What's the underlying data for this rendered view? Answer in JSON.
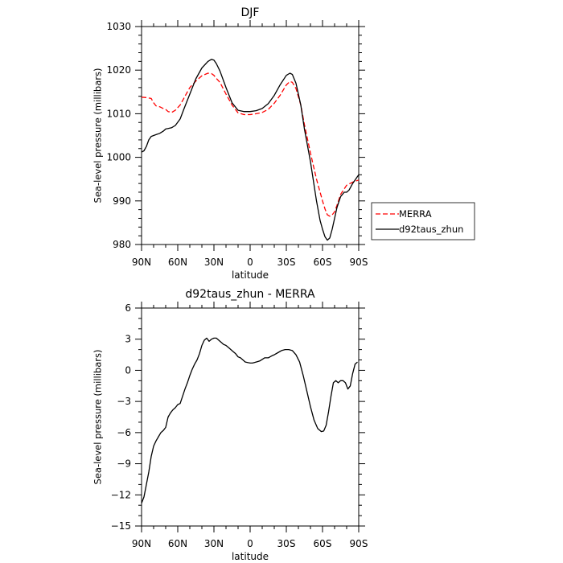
{
  "chart_data": [
    {
      "type": "line",
      "title": "DJF",
      "xlabel": "latitude",
      "ylabel": "Sea-level pressure (millibars)",
      "xlim": [
        90,
        -90
      ],
      "ylim": [
        980,
        1030
      ],
      "xticks": [
        90,
        60,
        30,
        0,
        -30,
        -60,
        -90
      ],
      "xtick_labels": [
        "90N",
        "60N",
        "30N",
        "0",
        "30S",
        "60S",
        "90S"
      ],
      "yticks": [
        980,
        990,
        1000,
        1010,
        1020,
        1030
      ],
      "ytick_labels": [
        "980",
        "990",
        "1000",
        "1010",
        "1020",
        "1030"
      ],
      "legend_placement": "outside-right-bottom",
      "series": [
        {
          "name": "MERRA",
          "color": "#ff0000",
          "dash": "dashed",
          "x": [
            90,
            86,
            82,
            80,
            78,
            75,
            72,
            70,
            68,
            65,
            62,
            58,
            55,
            50,
            45,
            40,
            35,
            32,
            30,
            28,
            25,
            20,
            15,
            10,
            5,
            0,
            -5,
            -10,
            -15,
            -20,
            -25,
            -30,
            -33,
            -35,
            -38,
            -42,
            -45,
            -50,
            -55,
            -60,
            -62,
            -64,
            -66,
            -68,
            -70,
            -72,
            -75,
            -80,
            -85,
            -90
          ],
          "y": [
            1013.8,
            1013.7,
            1013.5,
            1012.5,
            1011.8,
            1011.6,
            1011.2,
            1011.0,
            1010.5,
            1010.3,
            1010.8,
            1012.0,
            1013.5,
            1016.0,
            1017.5,
            1018.7,
            1019.3,
            1019.2,
            1018.8,
            1018.1,
            1017.2,
            1014.5,
            1012.0,
            1010.2,
            1009.8,
            1009.8,
            1010.0,
            1010.3,
            1011.0,
            1012.4,
            1014.3,
            1016.6,
            1017.4,
            1017.2,
            1015.8,
            1012.0,
            1007.5,
            1001.0,
            995.0,
            990.0,
            988.2,
            986.8,
            986.5,
            986.8,
            987.5,
            989.0,
            991.5,
            993.6,
            994.3,
            994.8
          ]
        },
        {
          "name": "d92taus_zhun",
          "color": "#000000",
          "dash": "solid",
          "x": [
            90,
            88,
            86,
            84,
            82,
            80,
            78,
            75,
            72,
            70,
            68,
            65,
            62,
            58,
            55,
            50,
            45,
            40,
            35,
            32,
            30,
            28,
            25,
            20,
            15,
            10,
            5,
            0,
            -5,
            -10,
            -15,
            -20,
            -25,
            -30,
            -33,
            -35,
            -38,
            -42,
            -45,
            -50,
            -55,
            -58,
            -60,
            -62,
            -64,
            -66,
            -68,
            -70,
            -72,
            -75,
            -78,
            -80,
            -82,
            -85,
            -90
          ],
          "y": [
            1001.2,
            1001.5,
            1002.5,
            1004.0,
            1004.8,
            1005.0,
            1005.2,
            1005.5,
            1006.0,
            1006.5,
            1006.6,
            1006.8,
            1007.3,
            1008.8,
            1011.0,
            1014.5,
            1018.0,
            1020.5,
            1022.0,
            1022.5,
            1022.3,
            1021.5,
            1019.8,
            1016.0,
            1012.5,
            1010.8,
            1010.5,
            1010.5,
            1010.7,
            1011.2,
            1012.3,
            1014.2,
            1016.7,
            1018.8,
            1019.3,
            1019.0,
            1017.0,
            1012.0,
            1006.5,
            999.0,
            990.0,
            985.5,
            983.5,
            981.8,
            981.0,
            981.5,
            983.5,
            986.0,
            988.5,
            991.0,
            992.0,
            992.0,
            992.5,
            994.0,
            996.0
          ]
        }
      ]
    },
    {
      "type": "line",
      "title": "d92taus_zhun - MERRA",
      "xlabel": "latitude",
      "ylabel": "Sea-level pressure (millibars)",
      "xlim": [
        90,
        -90
      ],
      "ylim": [
        -15,
        6
      ],
      "xticks": [
        90,
        60,
        30,
        0,
        -30,
        -60,
        -90
      ],
      "xtick_labels": [
        "90N",
        "60N",
        "30N",
        "0",
        "30S",
        "60S",
        "90S"
      ],
      "yticks": [
        -15,
        -12,
        -9,
        -6,
        -3,
        0,
        3,
        6
      ],
      "ytick_labels": [
        "−15",
        "−12",
        "−9",
        "−6",
        "−3",
        "0",
        "3",
        "6"
      ],
      "series": [
        {
          "color": "#000000",
          "dash": "solid",
          "x": [
            90,
            88,
            86,
            84,
            82,
            80,
            78,
            76,
            74,
            72,
            70,
            68,
            66,
            64,
            62,
            60,
            58,
            56,
            54,
            52,
            50,
            48,
            46,
            44,
            42,
            40,
            38,
            36,
            34,
            32,
            30,
            28,
            26,
            24,
            22,
            20,
            18,
            16,
            14,
            12,
            10,
            8,
            6,
            4,
            2,
            0,
            -2,
            -5,
            -8,
            -12,
            -15,
            -18,
            -20,
            -23,
            -26,
            -29,
            -32,
            -35,
            -38,
            -41,
            -44,
            -47,
            -50,
            -53,
            -56,
            -59,
            -61,
            -63,
            -65,
            -67,
            -69,
            -71,
            -73,
            -75,
            -77,
            -79,
            -81,
            -83,
            -85,
            -87,
            -89
          ],
          "y": [
            -12.8,
            -12.2,
            -11.0,
            -9.8,
            -8.3,
            -7.3,
            -6.8,
            -6.4,
            -6.0,
            -5.8,
            -5.5,
            -4.5,
            -4.1,
            -3.8,
            -3.6,
            -3.3,
            -3.2,
            -2.5,
            -1.8,
            -1.2,
            -0.5,
            0.1,
            0.6,
            1.0,
            1.6,
            2.4,
            2.9,
            3.1,
            2.8,
            3.0,
            3.1,
            3.1,
            2.9,
            2.7,
            2.5,
            2.4,
            2.2,
            2.0,
            1.8,
            1.6,
            1.3,
            1.2,
            1.0,
            0.8,
            0.75,
            0.7,
            0.7,
            0.8,
            0.9,
            1.2,
            1.2,
            1.4,
            1.5,
            1.7,
            1.9,
            2.0,
            2.0,
            1.9,
            1.5,
            0.8,
            -0.5,
            -2.0,
            -3.5,
            -4.8,
            -5.6,
            -5.9,
            -5.85,
            -5.3,
            -4.0,
            -2.5,
            -1.2,
            -1.0,
            -1.2,
            -1.0,
            -1.0,
            -1.2,
            -1.8,
            -1.5,
            -0.3,
            0.6,
            0.8
          ]
        }
      ]
    }
  ]
}
